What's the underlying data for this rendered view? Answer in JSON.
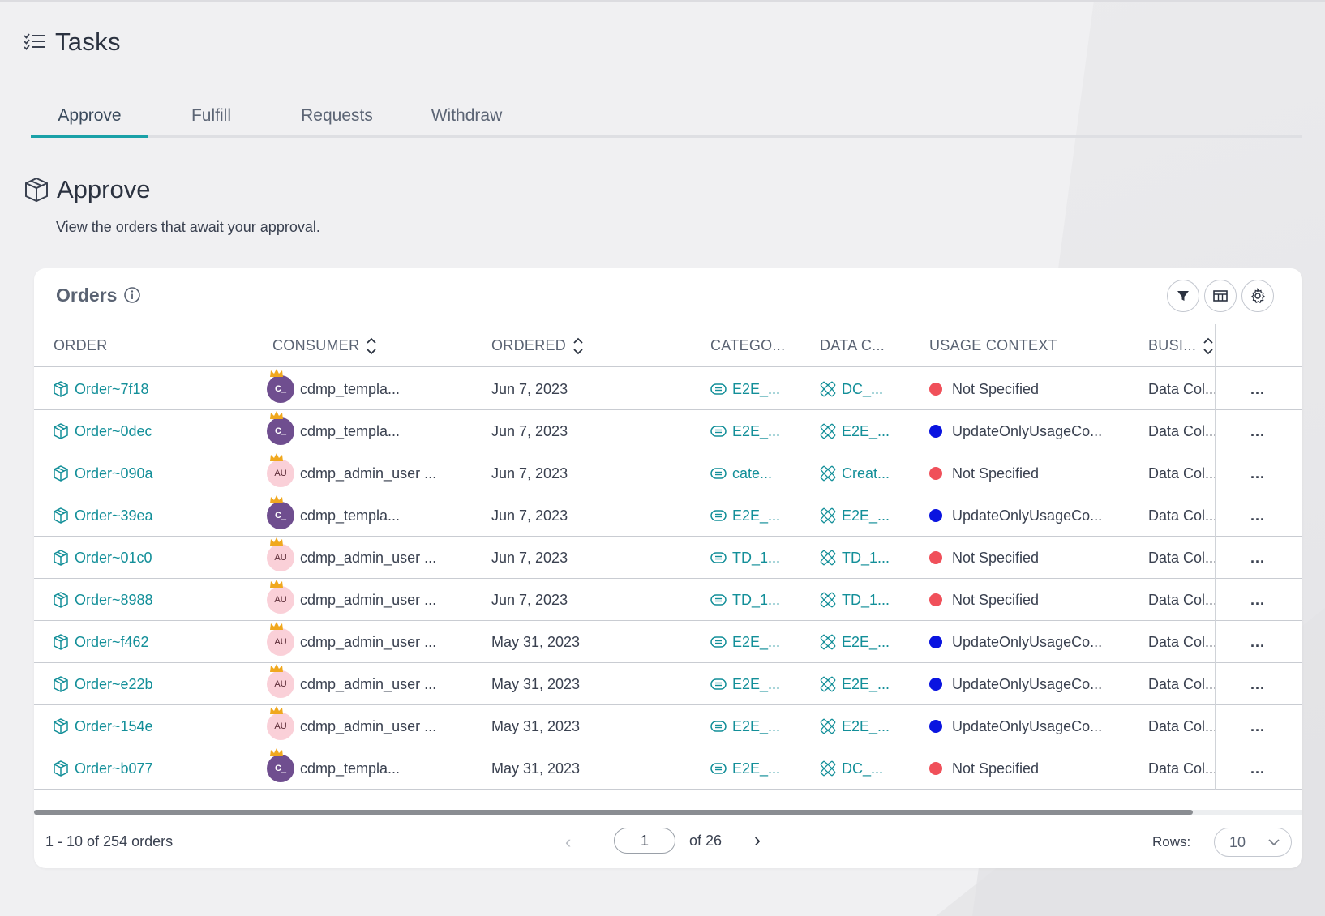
{
  "page": {
    "title": "Tasks"
  },
  "tabs": [
    {
      "label": "Approve",
      "active": true
    },
    {
      "label": "Fulfill",
      "active": false
    },
    {
      "label": "Requests",
      "active": false
    },
    {
      "label": "Withdraw",
      "active": false
    }
  ],
  "section": {
    "title": "Approve",
    "description": "View the orders that await your approval."
  },
  "orders_card": {
    "title": "Orders",
    "toolbar": {
      "filter_icon": "filter-icon",
      "columns_icon": "columns-icon",
      "settings_icon": "gear-icon"
    },
    "columns": [
      "ORDER",
      "CONSUMER",
      "ORDERED",
      "CATEGO...",
      "DATA C...",
      "USAGE CONTEXT",
      "BUSI..."
    ],
    "rows": [
      {
        "order": "Order~7f18",
        "avatar": "C_",
        "avatar_type": "c",
        "consumer": "cdmp_templa...",
        "ordered": "Jun 7, 2023",
        "category": "E2E_...",
        "data_collection": "DC_...",
        "usage_color": "#f0505a",
        "usage": "Not Specified",
        "business": "Data Col..."
      },
      {
        "order": "Order~0dec",
        "avatar": "C_",
        "avatar_type": "c",
        "consumer": "cdmp_templa...",
        "ordered": "Jun 7, 2023",
        "category": "E2E_...",
        "data_collection": "E2E_...",
        "usage_color": "#0a14e0",
        "usage": "UpdateOnlyUsageCo...",
        "business": "Data Col..."
      },
      {
        "order": "Order~090a",
        "avatar": "AU",
        "avatar_type": "au",
        "consumer": "cdmp_admin_user ...",
        "ordered": "Jun 7, 2023",
        "category": "cate...",
        "data_collection": "Creat...",
        "usage_color": "#f0505a",
        "usage": "Not Specified",
        "business": "Data Col..."
      },
      {
        "order": "Order~39ea",
        "avatar": "C_",
        "avatar_type": "c",
        "consumer": "cdmp_templa...",
        "ordered": "Jun 7, 2023",
        "category": "E2E_...",
        "data_collection": "E2E_...",
        "usage_color": "#0a14e0",
        "usage": "UpdateOnlyUsageCo...",
        "business": "Data Col..."
      },
      {
        "order": "Order~01c0",
        "avatar": "AU",
        "avatar_type": "au",
        "consumer": "cdmp_admin_user ...",
        "ordered": "Jun 7, 2023",
        "category": "TD_1...",
        "data_collection": "TD_1...",
        "usage_color": "#f0505a",
        "usage": "Not Specified",
        "business": "Data Col..."
      },
      {
        "order": "Order~8988",
        "avatar": "AU",
        "avatar_type": "au",
        "consumer": "cdmp_admin_user ...",
        "ordered": "Jun 7, 2023",
        "category": "TD_1...",
        "data_collection": "TD_1...",
        "usage_color": "#f0505a",
        "usage": "Not Specified",
        "business": "Data Col..."
      },
      {
        "order": "Order~f462",
        "avatar": "AU",
        "avatar_type": "au",
        "consumer": "cdmp_admin_user ...",
        "ordered": "May 31, 2023",
        "category": "E2E_...",
        "data_collection": "E2E_...",
        "usage_color": "#0a14e0",
        "usage": "UpdateOnlyUsageCo...",
        "business": "Data Col..."
      },
      {
        "order": "Order~e22b",
        "avatar": "AU",
        "avatar_type": "au",
        "consumer": "cdmp_admin_user ...",
        "ordered": "May 31, 2023",
        "category": "E2E_...",
        "data_collection": "E2E_...",
        "usage_color": "#0a14e0",
        "usage": "UpdateOnlyUsageCo...",
        "business": "Data Col..."
      },
      {
        "order": "Order~154e",
        "avatar": "AU",
        "avatar_type": "au",
        "consumer": "cdmp_admin_user ...",
        "ordered": "May 31, 2023",
        "category": "E2E_...",
        "data_collection": "E2E_...",
        "usage_color": "#0a14e0",
        "usage": "UpdateOnlyUsageCo...",
        "business": "Data Col..."
      },
      {
        "order": "Order~b077",
        "avatar": "C_",
        "avatar_type": "c",
        "consumer": "cdmp_templa...",
        "ordered": "May 31, 2023",
        "category": "E2E_...",
        "data_collection": "DC_...",
        "usage_color": "#f0505a",
        "usage": "Not Specified",
        "business": "Data Col..."
      }
    ],
    "row_action": "..."
  },
  "pagination": {
    "summary": "1 - 10 of 254 orders",
    "current_page": "1",
    "of_pages": "of 26",
    "rows_label": "Rows:",
    "rows_value": "10"
  },
  "colors": {
    "accent": "#1aa1a8",
    "link": "#138f99"
  }
}
